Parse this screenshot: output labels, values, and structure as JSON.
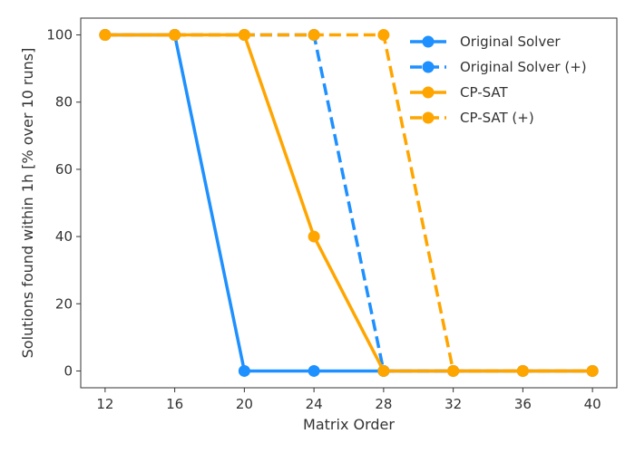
{
  "chart_data": {
    "type": "line",
    "title": "",
    "xlabel": "Matrix Order",
    "ylabel": "Solutions found within 1h [% over 10 runs]",
    "x": [
      12,
      16,
      20,
      24,
      28,
      32,
      36,
      40
    ],
    "xticks": [
      "12",
      "16",
      "20",
      "24",
      "28",
      "32",
      "36",
      "40"
    ],
    "yticks": [
      "0",
      "20",
      "40",
      "60",
      "80",
      "100"
    ],
    "xlim": [
      10.6,
      41.4
    ],
    "ylim": [
      -5,
      105
    ],
    "grid": false,
    "legend_position": "top-right",
    "series": [
      {
        "name": "Original Solver",
        "color": "#1e90ff",
        "linestyle": "solid",
        "x": [
          12,
          16,
          20,
          24,
          28,
          32,
          36,
          40
        ],
        "values": [
          100,
          100,
          0,
          0,
          0,
          0,
          0,
          0
        ]
      },
      {
        "name": "Original Solver (+)",
        "color": "#1e90ff",
        "linestyle": "dashed",
        "x": [
          12,
          16,
          20,
          24,
          28,
          32,
          36,
          40
        ],
        "values": [
          100,
          100,
          100,
          100,
          0,
          0,
          0,
          0
        ]
      },
      {
        "name": "CP-SAT",
        "color": "#ffa500",
        "linestyle": "solid",
        "x": [
          12,
          16,
          20,
          24,
          28,
          32,
          36,
          40
        ],
        "values": [
          100,
          100,
          100,
          40,
          0,
          0,
          0,
          0
        ]
      },
      {
        "name": "CP-SAT (+)",
        "color": "#ffa500",
        "linestyle": "dashed",
        "x": [
          12,
          16,
          20,
          24,
          28,
          32,
          36,
          40
        ],
        "values": [
          100,
          100,
          100,
          100,
          100,
          0,
          0,
          0
        ]
      }
    ]
  }
}
